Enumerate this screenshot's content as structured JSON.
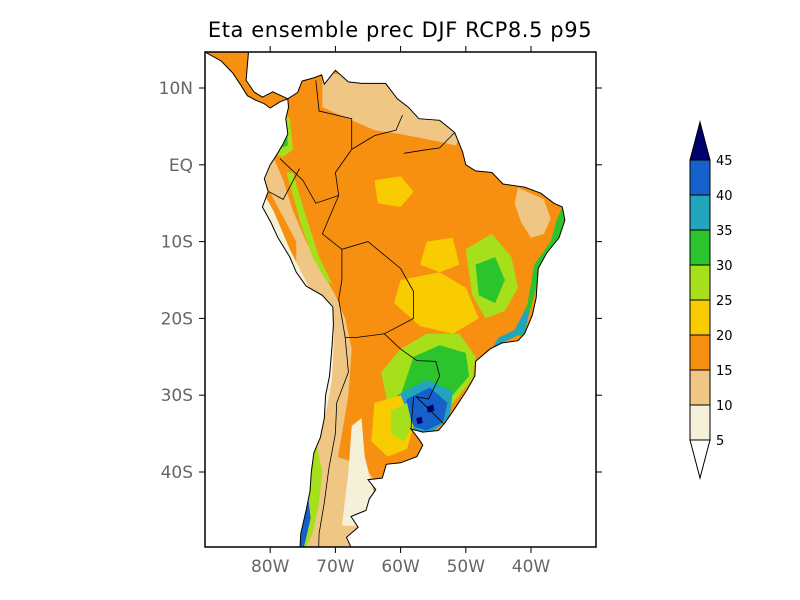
{
  "title": "Eta ensemble prec DJF RCP8.5 p95",
  "map": {
    "region": "South America",
    "projection": "lat-lon",
    "lon_range": [
      -90,
      -30
    ],
    "lat_range": [
      -50,
      15
    ],
    "lat_ticks": [
      {
        "value": 10,
        "label": "10N"
      },
      {
        "value": 0,
        "label": "EQ"
      },
      {
        "value": -10,
        "label": "10S"
      },
      {
        "value": -20,
        "label": "20S"
      },
      {
        "value": -30,
        "label": "30S"
      },
      {
        "value": -40,
        "label": "40S"
      }
    ],
    "lon_ticks": [
      {
        "value": -80,
        "label": "80W"
      },
      {
        "value": -70,
        "label": "70W"
      },
      {
        "value": -60,
        "label": "60W"
      },
      {
        "value": -50,
        "label": "50W"
      },
      {
        "value": -40,
        "label": "40W"
      }
    ]
  },
  "colorbar": {
    "levels": [
      "5",
      "10",
      "15",
      "20",
      "25",
      "30",
      "35",
      "40",
      "45"
    ],
    "colors": [
      "#f5f0d8",
      "#f0c685",
      "#f79010",
      "#f8cc00",
      "#a6e01a",
      "#2cc42c",
      "#22a4bc",
      "#1660cc"
    ],
    "under_color": "#ffffff",
    "over_color": "#00006e",
    "extend": "both"
  }
}
